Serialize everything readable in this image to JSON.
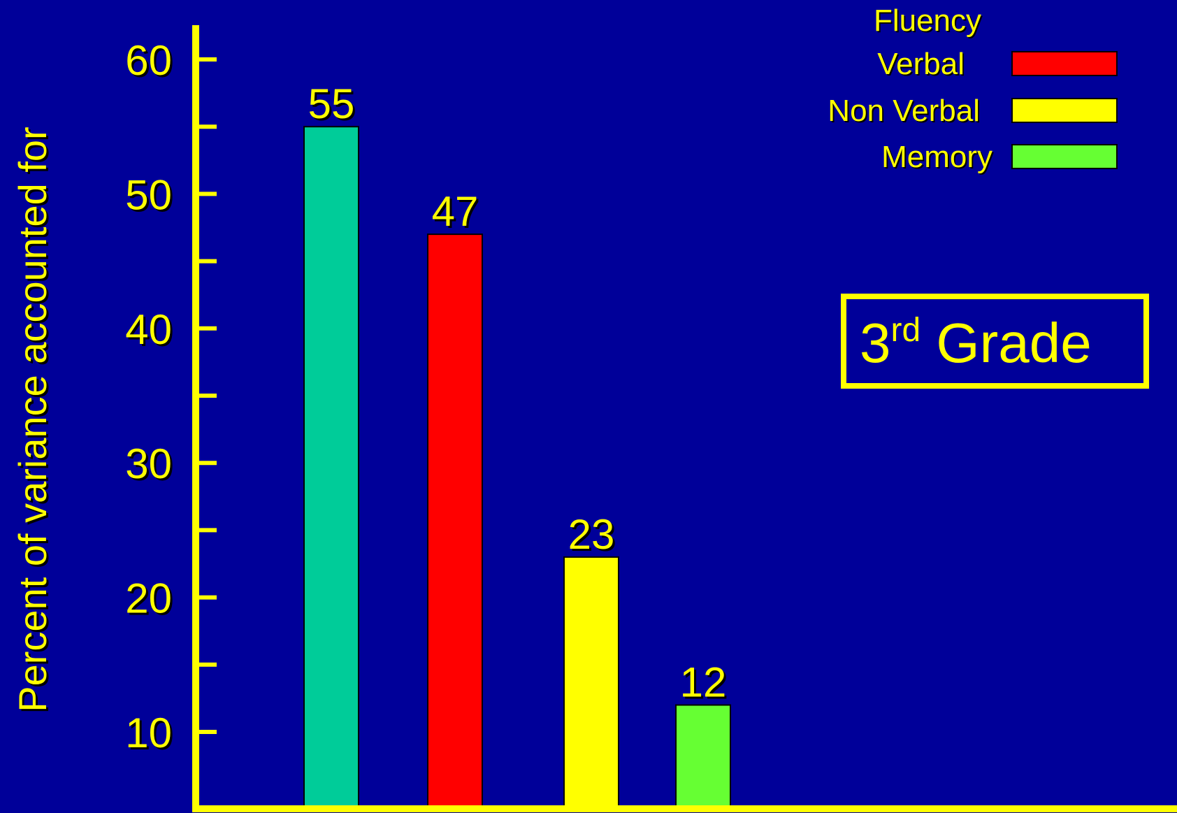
{
  "colors": {
    "background": "#000099",
    "axis": "#FFFF00",
    "text": "#FFFF00",
    "shadow": "#000000"
  },
  "chart_data": {
    "type": "bar",
    "categories": [
      "",
      "Verbal",
      "Non Verbal",
      "Memory"
    ],
    "values": [
      55,
      47,
      23,
      12
    ],
    "value_labels": [
      "55",
      "47",
      "23",
      "12"
    ],
    "bar_colors": [
      "#00CC99",
      "#FF0000",
      "#FFFF00",
      "#66FF33"
    ],
    "xlabel": "",
    "ylabel": "Percent of variance accounted for",
    "ylim": [
      5,
      63
    ],
    "yticks_major": [
      10,
      20,
      30,
      40,
      50,
      60
    ],
    "yticks_minor": [
      15,
      25,
      35,
      45,
      55
    ],
    "ytick_labels": [
      "10",
      "20",
      "30",
      "40",
      "50",
      "60"
    ],
    "grid": false,
    "legend": {
      "placement": "top-right",
      "title": "Fluency",
      "entries": [
        {
          "label": "Verbal",
          "color": "#FF0000"
        },
        {
          "label": "Non Verbal",
          "color": "#FFFF00"
        },
        {
          "label": "Memory",
          "color": "#66FF33"
        }
      ]
    },
    "annotation": {
      "base": "3",
      "superscript": "rd",
      "rest": " Grade"
    }
  }
}
